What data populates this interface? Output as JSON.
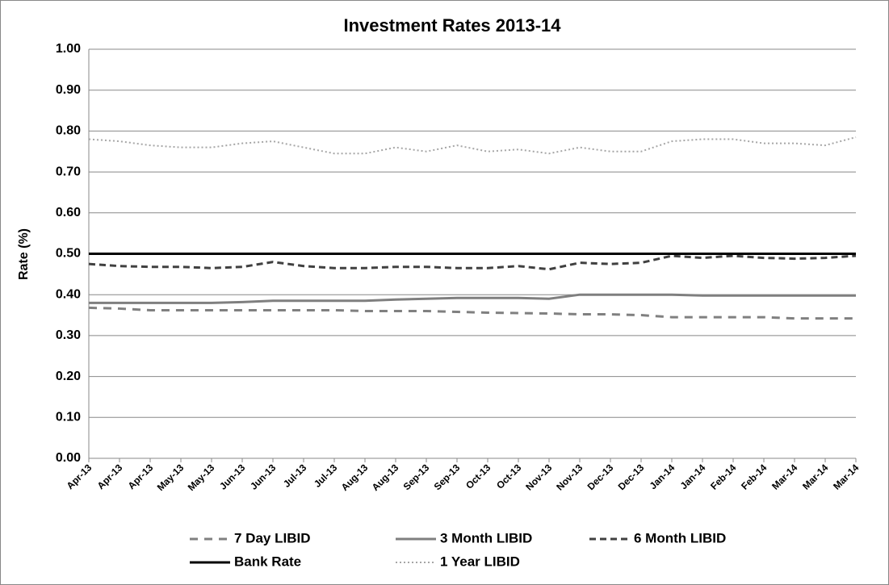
{
  "chart_data": {
    "type": "line",
    "title": "Investment Rates 2013-14",
    "y_label": "Rate (%)",
    "categories": [
      "Apr-13",
      "Apr-13",
      "Apr-13",
      "May-13",
      "May-13",
      "Jun-13",
      "Jun-13",
      "Jul-13",
      "Jul-13",
      "Aug-13",
      "Aug-13",
      "Sep-13",
      "Sep-13",
      "Oct-13",
      "Oct-13",
      "Nov-13",
      "Nov-13",
      "Dec-13",
      "Dec-13",
      "Jan-14",
      "Jan-14",
      "Feb-14",
      "Feb-14",
      "Mar-14",
      "Mar-14",
      "Mar-14"
    ],
    "series": [
      {
        "name": "7 Day LIBID",
        "color": "#808080",
        "dash": "10,8",
        "width": 3,
        "values": [
          0.368,
          0.366,
          0.362,
          0.362,
          0.362,
          0.362,
          0.362,
          0.362,
          0.362,
          0.36,
          0.36,
          0.36,
          0.358,
          0.356,
          0.355,
          0.354,
          0.352,
          0.352,
          0.35,
          0.345,
          0.345,
          0.345,
          0.345,
          0.342,
          0.342,
          0.342
        ]
      },
      {
        "name": "3 Month LIBID",
        "color": "#7f7f7f",
        "dash": "none",
        "width": 3,
        "values": [
          0.38,
          0.38,
          0.38,
          0.38,
          0.38,
          0.382,
          0.385,
          0.385,
          0.385,
          0.385,
          0.388,
          0.39,
          0.392,
          0.392,
          0.392,
          0.39,
          0.4,
          0.4,
          0.4,
          0.4,
          0.398,
          0.398,
          0.398,
          0.398,
          0.398,
          0.398
        ]
      },
      {
        "name": "6 Month LIBID",
        "color": "#404040",
        "dash": "8,5",
        "width": 3,
        "values": [
          0.475,
          0.47,
          0.468,
          0.468,
          0.465,
          0.468,
          0.48,
          0.47,
          0.465,
          0.465,
          0.468,
          0.468,
          0.465,
          0.465,
          0.47,
          0.462,
          0.478,
          0.475,
          0.478,
          0.495,
          0.49,
          0.495,
          0.49,
          0.488,
          0.49,
          0.495
        ]
      },
      {
        "name": "Bank Rate",
        "color": "#000000",
        "dash": "none",
        "width": 3,
        "values": [
          0.5,
          0.5,
          0.5,
          0.5,
          0.5,
          0.5,
          0.5,
          0.5,
          0.5,
          0.5,
          0.5,
          0.5,
          0.5,
          0.5,
          0.5,
          0.5,
          0.5,
          0.5,
          0.5,
          0.5,
          0.5,
          0.5,
          0.5,
          0.5,
          0.5,
          0.5
        ]
      },
      {
        "name": "1 Year LIBID",
        "color": "#a6a6a6",
        "dash": "2,3",
        "width": 2,
        "values": [
          0.78,
          0.775,
          0.765,
          0.76,
          0.76,
          0.77,
          0.775,
          0.76,
          0.745,
          0.745,
          0.76,
          0.75,
          0.765,
          0.75,
          0.755,
          0.745,
          0.76,
          0.75,
          0.75,
          0.775,
          0.78,
          0.78,
          0.77,
          0.77,
          0.765,
          0.785
        ]
      }
    ],
    "ylim": [
      0,
      1
    ],
    "yticks": [
      {
        "value": 0,
        "label": "0.00"
      },
      {
        "value": 0.1,
        "label": "0.10"
      },
      {
        "value": 0.2,
        "label": "0.20"
      },
      {
        "value": 0.3,
        "label": "0.30"
      },
      {
        "value": 0.4,
        "label": "0.40"
      },
      {
        "value": 0.5,
        "label": "0.50"
      },
      {
        "value": 0.6,
        "label": "0.60"
      },
      {
        "value": 0.7,
        "label": "0.70"
      },
      {
        "value": 0.8,
        "label": "0.80"
      },
      {
        "value": 0.9,
        "label": "0.90"
      },
      {
        "value": 1,
        "label": "1.00"
      }
    ],
    "grid": true,
    "legend": "bottom"
  }
}
